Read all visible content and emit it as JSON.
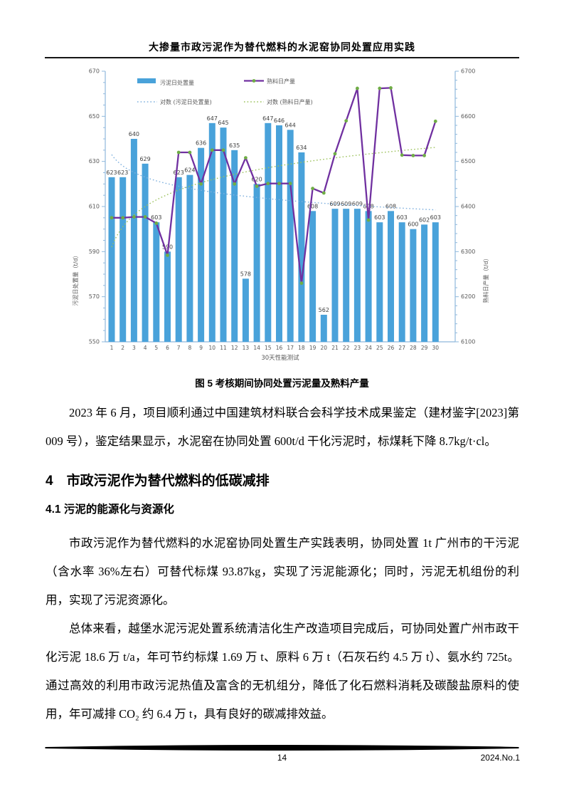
{
  "header": {
    "title": "大掺量市政污泥作为替代燃料的水泥窑协同处置应用实践"
  },
  "figure": {
    "caption": "图 5  考核期间协同处置污泥量及熟料产量"
  },
  "chart_data": {
    "type": "bar",
    "x_categories": [
      1,
      2,
      3,
      4,
      5,
      6,
      7,
      8,
      9,
      10,
      11,
      12,
      13,
      14,
      15,
      16,
      17,
      18,
      19,
      20,
      21,
      22,
      23,
      24,
      25,
      26,
      27,
      28,
      29,
      30
    ],
    "series": [
      {
        "name": "污泥日处置量",
        "type": "bar",
        "axis": "left",
        "color": "#49A2DA",
        "values": [
          623,
          623,
          640,
          629,
          603,
          590,
          623,
          624,
          636,
          647,
          645,
          635,
          578,
          620,
          647,
          646,
          644,
          634,
          608,
          562,
          609,
          609,
          609,
          608,
          603,
          608,
          603,
          600,
          602,
          603
        ]
      },
      {
        "name": "熟料日产量",
        "type": "line",
        "axis": "right",
        "color": "#7030A0",
        "marker_color": "#6FAD45",
        "values": [
          6375,
          6375,
          6377,
          6377,
          6363,
          6292,
          6520,
          6520,
          6450,
          6525,
          6525,
          6450,
          6508,
          6445,
          6451,
          6451,
          6451,
          6230,
          6440,
          6430,
          6517,
          6590,
          6662,
          6370,
          6662,
          6663,
          6514,
          6513,
          6513,
          6589
        ]
      },
      {
        "name": "对数 (污泥日处置量)",
        "type": "log_trend",
        "axis": "left",
        "color": "#7FB0DE",
        "a": 633,
        "b": -7.2
      },
      {
        "name": "对数 (熟料日产量)",
        "type": "log_trend",
        "axis": "right",
        "color": "#9CC25C",
        "a": 6310,
        "b": 65
      }
    ],
    "left_axis": {
      "title": "污泥日处置量（t/d）",
      "min": 550,
      "max": 670,
      "major_step": 20,
      "minor_step": 5
    },
    "right_axis": {
      "title": "熟料日产量（t/d）",
      "min": 6100,
      "max": 6700,
      "major_step": 100,
      "minor_step": 20
    },
    "xlabel": "30天性能测试",
    "legend_position": "top-inside",
    "grid": false
  },
  "body": {
    "p1": "2023 年 6 月，项目顺利通过中国建筑材料联合会科学技术成果鉴定（建材鉴字[2023]第 009 号），鉴定结果显示，水泥窑在协同处置 600t/d 干化污泥时，标煤耗下降 8.7kg/t·cl。",
    "h2": "4　市政污泥作为替代燃料的低碳减排",
    "h3": "4.1 污泥的能源化与资源化",
    "p2": "市政污泥作为替代燃料的水泥窑协同处置生产实践表明，协同处置 1t 广州市的干污泥（含水率 36%左右）可替代标煤 93.87kg，实现了污泥能源化；同时，污泥无机组份的利用，实现了污泥资源化。",
    "p3": "总体来看，越堡水泥污泥处置系统清洁化生产改造项目完成后，可协同处置广州市政干化污泥 18.6 万 t/a，年可节约标煤 1.69 万 t、原料 6 万 t（石灰石约 4.5 万 t）、氨水约 725t。通过高效的利用市政污泥热值及富含的无机组分，降低了化石燃料消耗及碳酸盐原料的使用，年可减排 CO₂ 约 6.4 万 t，具有良好的碳减排效益。"
  },
  "footer": {
    "page_number": "14",
    "issue": "2024.No.1"
  }
}
